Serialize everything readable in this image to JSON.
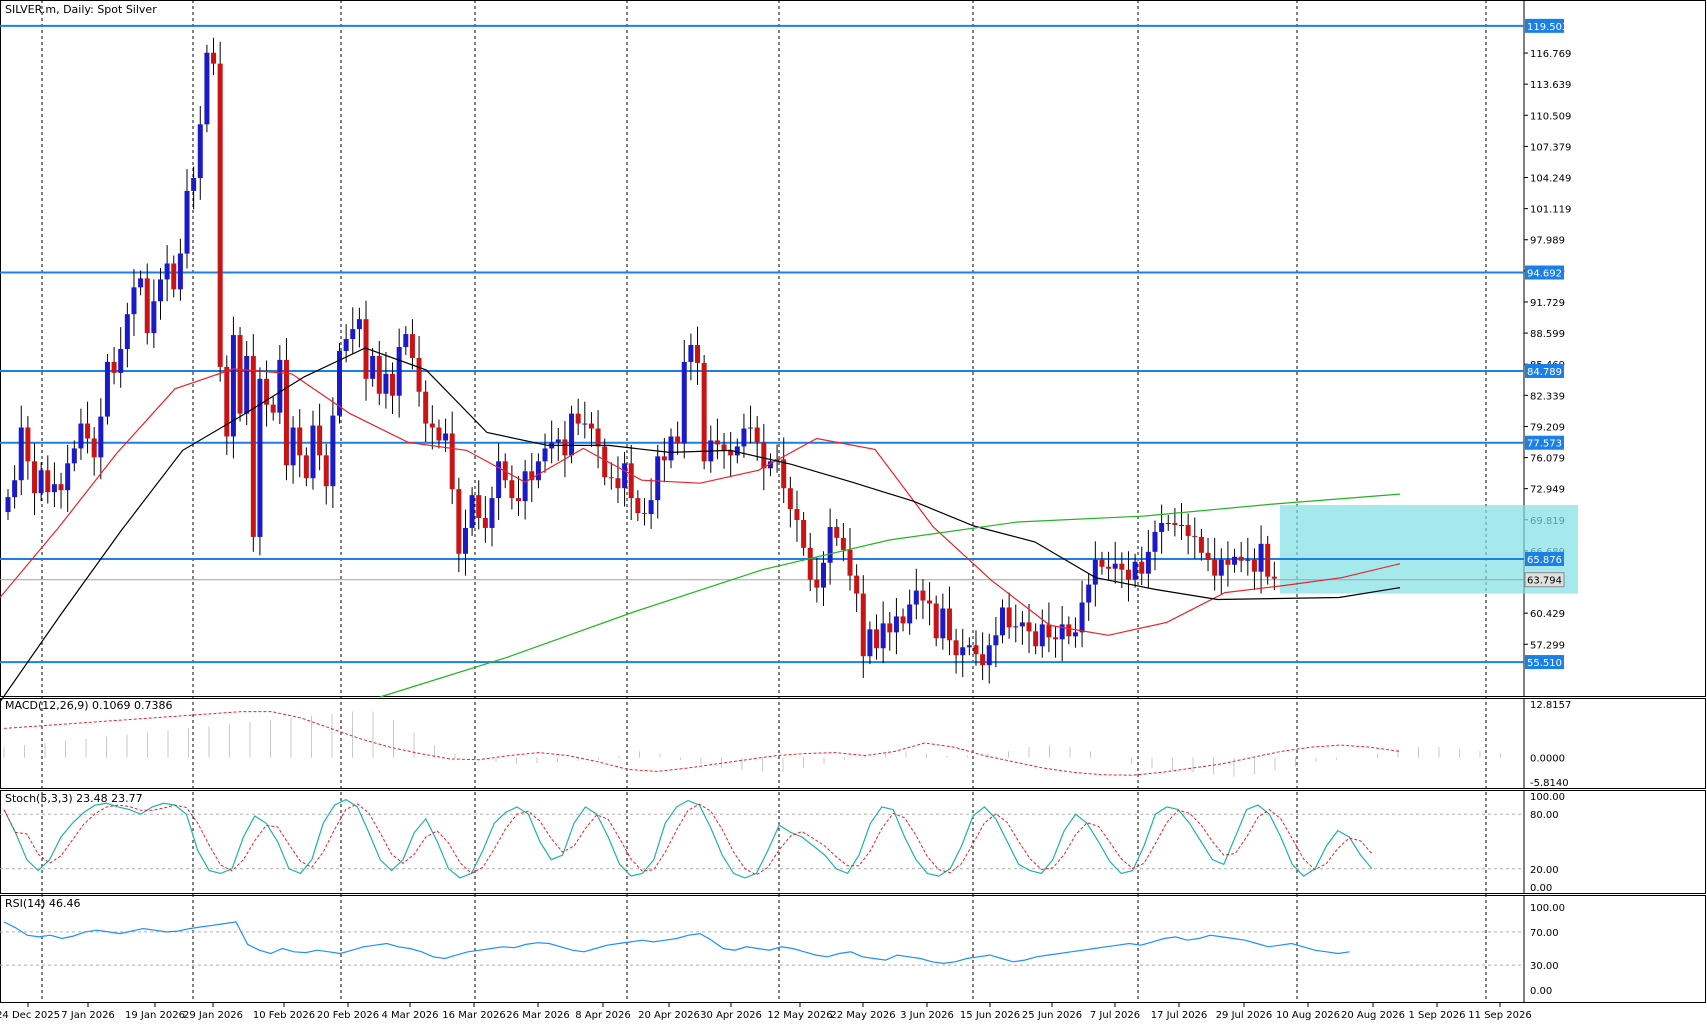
{
  "header": {
    "symbol_label": "SILVER.m, Daily:  Spot Silver"
  },
  "colors": {
    "background": "#ffffff",
    "grid": "#000000",
    "up_candle": "#1a1ac8",
    "down_candle": "#c81414",
    "wick": "#000000",
    "sma20": "#e8232a",
    "sma50": "#000000",
    "sma200": "#22b422",
    "level_line": "#1a7fe6",
    "price_label_bg": "#1a7fe6",
    "current_price_line": "#a0a0a0",
    "zone_fill": "#7fe0e6",
    "macd_signal": "#e8232a",
    "macd_hist": "#c8c8c8",
    "stoch_main": "#20b2aa",
    "stoch_signal": "#e8232a",
    "rsi_line": "#1e90ff"
  },
  "price_axis": {
    "ticks": [
      "116.769",
      "113.639",
      "110.509",
      "107.379",
      "104.249",
      "101.119",
      "97.989",
      "94.859",
      "91.729",
      "88.599",
      "85.469",
      "82.339",
      "79.209",
      "76.079",
      "72.949",
      "69.819",
      "66.689",
      "60.429",
      "57.299"
    ],
    "range": [
      52.7,
      121.5
    ]
  },
  "level_lines": [
    {
      "value": 119.503,
      "label": "119.503"
    },
    {
      "value": 94.692,
      "label": "94.692"
    },
    {
      "value": 84.789,
      "label": "84.789"
    },
    {
      "value": 77.573,
      "label": "77.573"
    },
    {
      "value": 65.876,
      "label": "65.876"
    },
    {
      "value": 55.51,
      "label": "55.510"
    }
  ],
  "current_price": {
    "value": 63.794,
    "label": "63.794"
  },
  "consolidation_zone": {
    "from_date": "5 Aug 2026",
    "to_date": "17 Sep 2026",
    "low": 62.4,
    "high": 71.3
  },
  "date_axis": [
    "24 Dec 2025",
    "7 Jan 2026",
    "19 Jan 2026",
    "29 Jan 2026",
    "10 Feb 2026",
    "20 Feb 2026",
    "4 Mar 2026",
    "16 Mar 2026",
    "26 Mar 2026",
    "8 Apr 2026",
    "20 Apr 2026",
    "30 Apr 2026",
    "12 May 2026",
    "22 May 2026",
    "3 Jun 2026",
    "15 Jun 2026",
    "25 Jun 2026",
    "7 Jul 2026",
    "17 Jul 2026",
    "29 Jul 2026",
    "10 Aug 2026",
    "20 Aug 2026",
    "1 Sep 2026",
    "11 Sep 2026"
  ],
  "macd": {
    "label": "MACD(12,26,9) 0.1069 0.7386",
    "ticks": [
      "12.8157",
      "0.0000",
      "-5.8140"
    ],
    "range": [
      -6.3,
      13.3
    ]
  },
  "stoch": {
    "label": "Stoch(5,3,3) 23.48 23.77",
    "ticks": [
      "100.00",
      "80.00",
      "20.00",
      "0.00"
    ]
  },
  "rsi": {
    "label": "RSI(14) 46.46",
    "ticks": [
      "100.00",
      "70.00",
      "30.00",
      "0.00"
    ]
  },
  "chart_data": {
    "type": "candlestick",
    "title": "SILVER.m, Daily:  Spot Silver",
    "candles_close": [
      72.1,
      73.8,
      79.1,
      75.7,
      72.5,
      74.8,
      72.6,
      73.4,
      72.8,
      75.5,
      77.0,
      79.5,
      78.0,
      76.1,
      80.2,
      85.7,
      84.6,
      87.0,
      90.5,
      93.2,
      94.1,
      88.6,
      91.8,
      94.0,
      95.6,
      93.0,
      96.6,
      102.9,
      104.2,
      109.6,
      116.8,
      115.7,
      85.2,
      78.2,
      88.4,
      80.5,
      86.3,
      68.1,
      84.0,
      81.4,
      80.6,
      85.9,
      75.3,
      79.1,
      76.3,
      74.0,
      79.3,
      76.3,
      73.2,
      80.3,
      86.8,
      88.0,
      89.0,
      90.0,
      84.0,
      86.3,
      82.5,
      84.5,
      82.3,
      87.2,
      88.5,
      86.1,
      82.7,
      79.5,
      79.1,
      77.8,
      78.5,
      72.9,
      66.4,
      69.0,
      72.3,
      70.0,
      69.0,
      72.0,
      75.7,
      73.8,
      72.0,
      71.7,
      74.7,
      73.8,
      75.7,
      77.0,
      77.6,
      77.9,
      76.3,
      80.5,
      79.5,
      79.5,
      79.0,
      77.2,
      74.1,
      74.0,
      73.0,
      75.5,
      72.0,
      70.5,
      70.4,
      71.8,
      76.2,
      75.8,
      78.2,
      77.5,
      85.7,
      87.4,
      85.6,
      75.7,
      77.8,
      77.4,
      76.8,
      76.3,
      77.2,
      79.0,
      79.1,
      77.6,
      75.0,
      75.7,
      75.9,
      73.0,
      70.9,
      69.8,
      67.0,
      63.8,
      63.0,
      65.5,
      69.1,
      68.0,
      66.8,
      64.2,
      62.4,
      56.1,
      58.8,
      56.9,
      59.4,
      58.5,
      60.1,
      59.4,
      61.3,
      62.7,
      61.7,
      61.4,
      57.9,
      60.9,
      57.7,
      56.2,
      57.0,
      57.2,
      56.3,
      55.2,
      57.2,
      58.2,
      61.0,
      59.0,
      59.1,
      59.5,
      58.6,
      57.1,
      59.3,
      58.0,
      57.8,
      59.3,
      58.1,
      58.5,
      61.5,
      63.3,
      65.8,
      65.1,
      64.9,
      65.4,
      64.8,
      63.8,
      65.6,
      64.4,
      66.6,
      68.6,
      69.5,
      69.5,
      69.3,
      69.3,
      68.2,
      68.1,
      66.5,
      65.8,
      64.2,
      65.8,
      65.3,
      66.1,
      65.7,
      65.8,
      64.6,
      67.4,
      64.1,
      63.9
    ],
    "series": [
      {
        "name": "MA (fast)",
        "values": [
          62.0,
          69.0,
          76.5,
          83.0,
          85.0,
          84.5,
          80.5,
          77.6,
          76.8,
          73.6,
          77.0,
          73.8,
          73.5,
          74.8,
          78.0,
          76.9,
          69.1,
          63.7,
          59.2,
          58.2,
          59.5,
          62.5,
          63.2,
          64.0,
          65.4
        ]
      },
      {
        "name": "MA (medium)",
        "values": [
          51.5,
          60.3,
          68.8,
          76.8,
          80.4,
          84.2,
          87.1,
          84.9,
          78.6,
          77.3,
          77.3,
          76.6,
          76.8,
          75.4,
          73.6,
          71.7,
          69.2,
          67.6,
          64.0,
          62.8,
          61.8,
          61.9,
          62.0,
          63.0
        ]
      },
      {
        "name": "MA (slow)",
        "values": [
          52.0,
          56.0,
          60.6,
          64.8,
          67.8,
          69.6,
          70.2,
          71.4,
          72.4
        ]
      }
    ],
    "ylim": [
      52.7,
      121.5
    ]
  }
}
